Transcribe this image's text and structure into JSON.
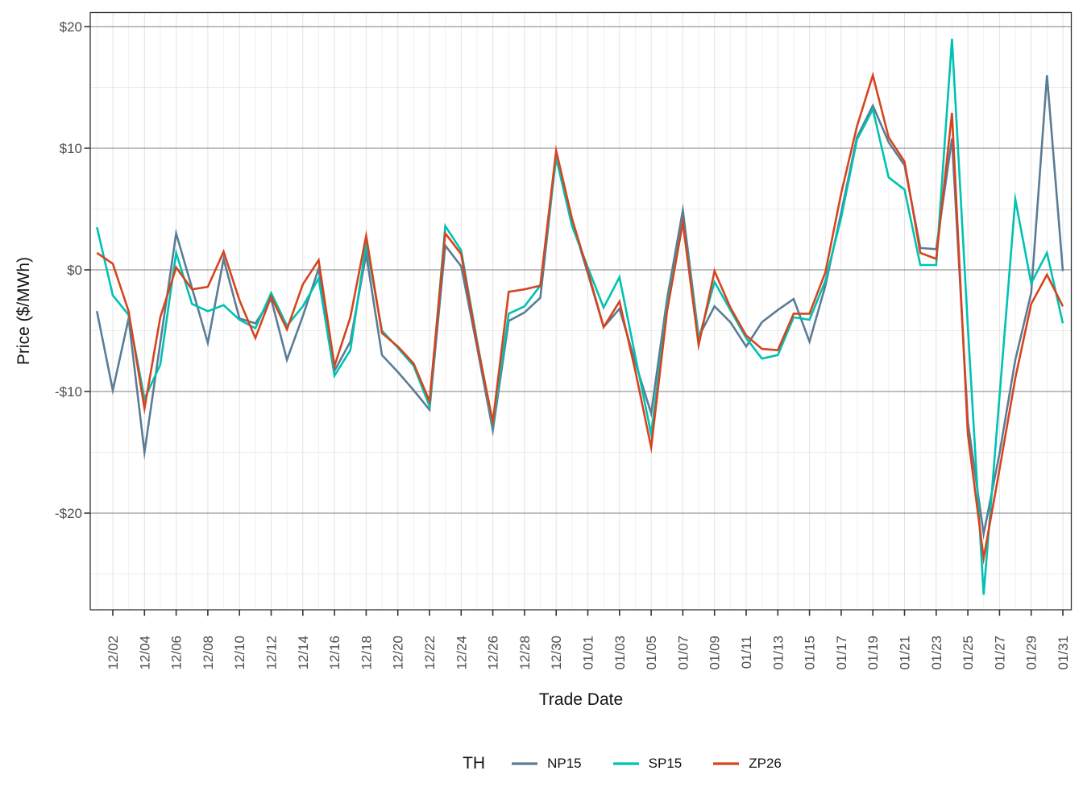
{
  "chart_data": {
    "type": "line",
    "title": "",
    "xlabel": "Trade Date",
    "ylabel": "Price ($/MWh)",
    "legend_title": "TH",
    "legend_position": "bottom",
    "grid": true,
    "ylim": [
      -27.9,
      21.2
    ],
    "x_tick_rotation_deg": 90,
    "yticks": [
      {
        "label": "$20",
        "value": 20
      },
      {
        "label": "$10",
        "value": 10
      },
      {
        "label": "$0",
        "value": 0
      },
      {
        "label": "-$10",
        "value": -10
      },
      {
        "label": "-$20",
        "value": -20
      }
    ],
    "yticks_minor": [
      15,
      5,
      -5,
      -15,
      -25
    ],
    "x": [
      "12/01",
      "12/02",
      "12/03",
      "12/04",
      "12/05",
      "12/06",
      "12/07",
      "12/08",
      "12/09",
      "12/10",
      "12/11",
      "12/12",
      "12/13",
      "12/14",
      "12/15",
      "12/16",
      "12/17",
      "12/18",
      "12/19",
      "12/20",
      "12/21",
      "12/22",
      "12/23",
      "12/24",
      "12/25",
      "12/26",
      "12/27",
      "12/28",
      "12/29",
      "12/30",
      "12/31",
      "01/01",
      "01/02",
      "01/03",
      "01/04",
      "01/05",
      "01/06",
      "01/07",
      "01/08",
      "01/09",
      "01/10",
      "01/11",
      "01/12",
      "01/13",
      "01/14",
      "01/15",
      "01/16",
      "01/17",
      "01/18",
      "01/19",
      "01/20",
      "01/21",
      "01/22",
      "01/23",
      "01/24",
      "01/25",
      "01/26",
      "01/27",
      "01/28",
      "01/29",
      "01/30",
      "01/31"
    ],
    "x_tick_labels": [
      "12/02",
      "12/04",
      "12/06",
      "12/08",
      "12/10",
      "12/12",
      "12/14",
      "12/16",
      "12/18",
      "12/20",
      "12/22",
      "12/24",
      "12/26",
      "12/28",
      "12/30",
      "01/01",
      "01/03",
      "01/05",
      "01/07",
      "01/09",
      "01/11",
      "01/13",
      "01/15",
      "01/17",
      "01/19",
      "01/21",
      "01/23",
      "01/25",
      "01/27",
      "01/29",
      "01/31"
    ],
    "series": [
      {
        "name": "NP15",
        "color": "#5a7c96",
        "values": [
          -3.4,
          -9.9,
          -4.0,
          -15.0,
          -6.0,
          3.0,
          -1.5,
          -6.0,
          0.9,
          -4.0,
          -4.4,
          -2.4,
          -7.4,
          -3.8,
          0.1,
          -8.3,
          -5.9,
          1.3,
          -7.0,
          -8.4,
          -9.9,
          -11.5,
          2.0,
          0.3,
          -6.3,
          -13.2,
          -4.2,
          -3.5,
          -2.3,
          9.4,
          4.0,
          -0.3,
          -4.7,
          -3.2,
          -7.6,
          -11.8,
          -2.4,
          4.9,
          -5.5,
          -3.0,
          -4.3,
          -6.3,
          -4.3,
          -3.3,
          -2.4,
          -5.9,
          -1.3,
          4.7,
          10.9,
          13.5,
          10.5,
          8.6,
          1.8,
          1.7,
          10.8,
          -12.5,
          -21.7,
          -15.1,
          -7.4,
          -1.9,
          16.0,
          -0.1
        ]
      },
      {
        "name": "SP15",
        "color": "#00c2b2",
        "values": [
          3.5,
          -2.1,
          -3.7,
          -10.6,
          -7.8,
          1.4,
          -2.8,
          -3.4,
          -2.9,
          -4.1,
          -4.8,
          -1.9,
          -4.6,
          -3.0,
          -0.7,
          -8.7,
          -6.6,
          2.2,
          -5.0,
          -6.4,
          -7.9,
          -11.2,
          3.6,
          1.6,
          -5.8,
          -12.8,
          -3.6,
          -3.0,
          -1.3,
          9.2,
          3.6,
          0.2,
          -3.1,
          -0.6,
          -7.1,
          -13.5,
          -3.0,
          3.9,
          -5.7,
          -1.0,
          -3.3,
          -5.6,
          -7.3,
          -7.0,
          -3.9,
          -4.1,
          -0.9,
          4.3,
          10.7,
          13.2,
          7.6,
          6.6,
          0.4,
          0.4,
          19.0,
          -4.7,
          -26.7,
          -10.4,
          5.8,
          -1.1,
          1.4,
          -4.4
        ]
      },
      {
        "name": "ZP26",
        "color": "#d6441f",
        "values": [
          1.4,
          0.5,
          -3.4,
          -11.4,
          -3.9,
          0.2,
          -1.6,
          -1.4,
          1.5,
          -2.5,
          -5.6,
          -2.2,
          -4.9,
          -1.2,
          0.8,
          -7.9,
          -3.9,
          2.8,
          -5.2,
          -6.3,
          -7.7,
          -10.8,
          3.0,
          1.3,
          -6.0,
          -12.5,
          -1.8,
          -1.6,
          -1.3,
          9.8,
          4.2,
          -0.1,
          -4.7,
          -2.6,
          -8.3,
          -14.6,
          -3.4,
          3.9,
          -6.2,
          -0.1,
          -3.1,
          -5.4,
          -6.5,
          -6.6,
          -3.6,
          -3.6,
          -0.2,
          6.3,
          11.8,
          16.0,
          10.9,
          8.9,
          1.4,
          0.9,
          12.9,
          -13.5,
          -23.7,
          -16.4,
          -8.9,
          -2.8,
          -0.4,
          -3.0
        ]
      }
    ]
  }
}
